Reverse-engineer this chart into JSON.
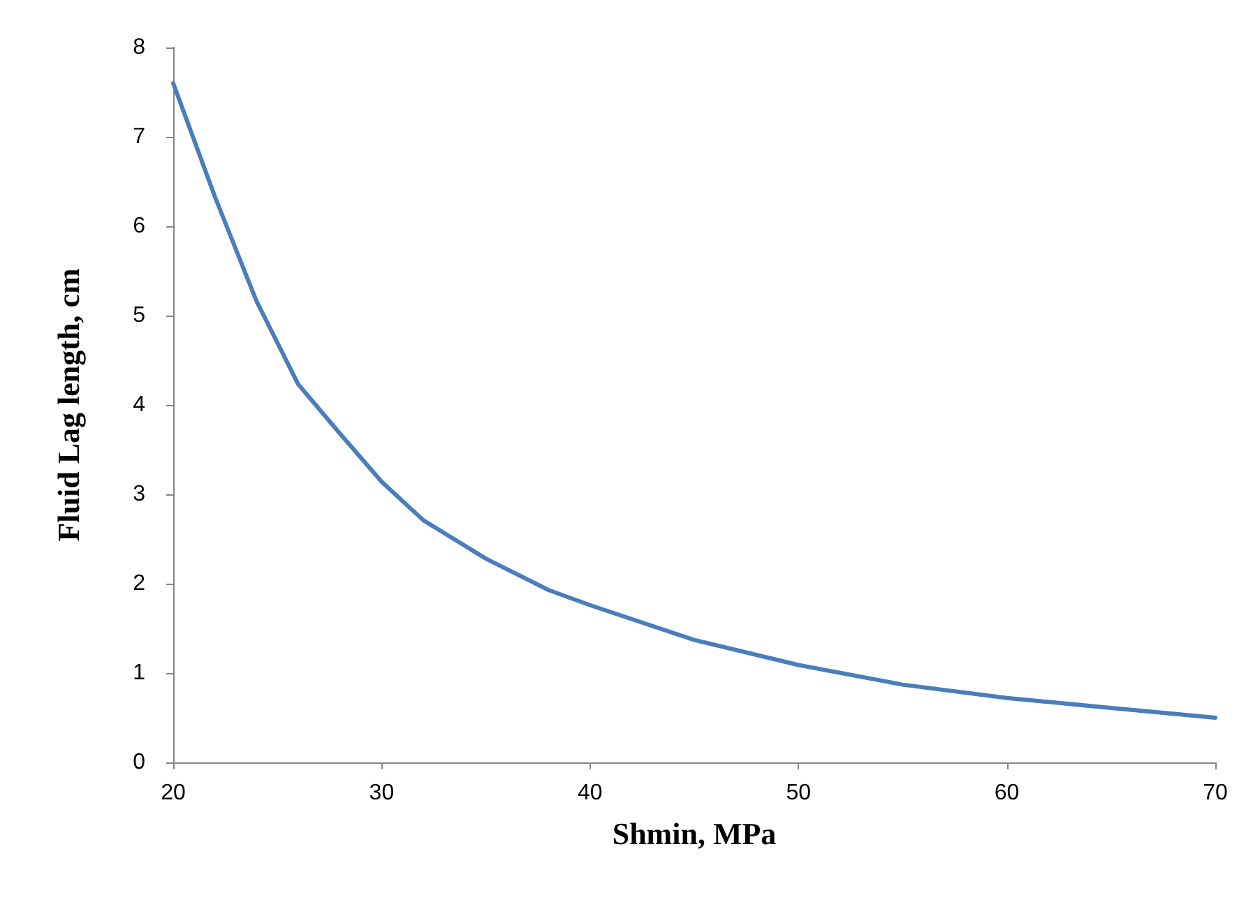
{
  "chart_data": {
    "type": "line",
    "xlabel": "Shmin, MPa",
    "ylabel": "Fluid Lag length, cm",
    "x": [
      20,
      22,
      24,
      26,
      28,
      30,
      32,
      35,
      38,
      40,
      45,
      50,
      55,
      60,
      65,
      70
    ],
    "series": [
      {
        "color": "#4a7ebb",
        "values": [
          7.6,
          6.33,
          5.16,
          4.23,
          3.68,
          3.14,
          2.71,
          2.28,
          1.93,
          1.76,
          1.37,
          1.09,
          0.87,
          0.72,
          0.61,
          0.5
        ]
      }
    ],
    "xlim": [
      20,
      70
    ],
    "xticks": [
      20,
      30,
      40,
      50,
      60,
      70
    ],
    "ylim": [
      0,
      8
    ],
    "yticks": [
      0,
      1,
      2,
      3,
      4,
      5,
      6,
      7,
      8
    ],
    "grid": false,
    "marker": "none",
    "line_style": "solid"
  }
}
